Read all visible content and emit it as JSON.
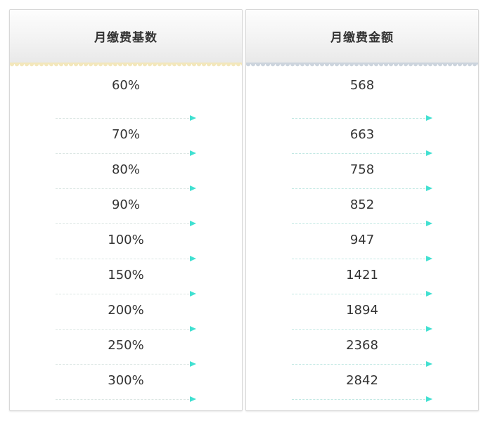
{
  "panels": [
    {
      "title": "月缴费基数",
      "scallop_color": "#f3e7bb",
      "rows": [
        "60%",
        "70%",
        "80%",
        "90%",
        "100%",
        "150%",
        "200%",
        "250%",
        "300%"
      ]
    },
    {
      "title": "月缴费金额",
      "scallop_color": "#ccd4dd",
      "rows": [
        "568",
        "663",
        "758",
        "852",
        "947",
        "1421",
        "1894",
        "2368",
        "2842"
      ]
    }
  ],
  "colors": {
    "arrow_head": "#41e0d1",
    "dashed_line_left": "#dbe6e3",
    "dashed_line_right": "#c2e8e3",
    "title_text": "#333333",
    "value_text": "#333333",
    "panel_border": "#d8d8d8",
    "header_gradient_top": "#fdfdfd",
    "header_gradient_bottom": "#e9e9e9"
  }
}
